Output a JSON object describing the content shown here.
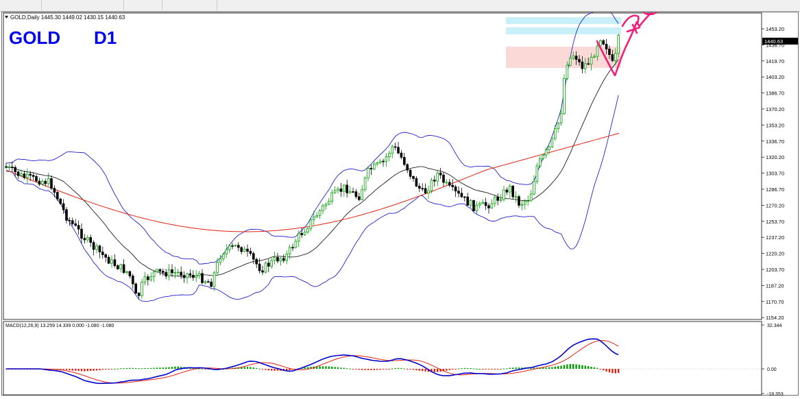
{
  "window": {
    "chart_title": "GOLD,Daily  1445.30 1449.02 1430.15 1440.63"
  },
  "overlay": {
    "symbol": "GOLD",
    "timeframe": "D1"
  },
  "price_axis": {
    "labels": [
      "1453.20",
      "1436.70",
      "1419.70",
      "1403.20",
      "1386.70",
      "1370.20",
      "1353.20",
      "1336.70",
      "1320.20",
      "1303.70",
      "1286.70",
      "1270.20",
      "1253.70",
      "1237.20",
      "1220.20",
      "1203.70",
      "1187.20",
      "1170.70",
      "1154.20"
    ],
    "current_price": "1440.63"
  },
  "macd": {
    "label": "MACD(12,26,9) 13.259 14.339 0.000 -1.080 -1.080",
    "axis_labels": [
      "32.344",
      "0.00",
      "-18.353"
    ]
  },
  "colors": {
    "bull_candle": "#00a000",
    "bear_candle": "#000000",
    "bollinger": "#1f1fd0",
    "ma_long": "#e02010",
    "ma_mid": "#000000",
    "macd_main": "#0000cc",
    "macd_signal": "#e02010",
    "hist_pos": "#00a000",
    "hist_neg": "#e02010",
    "zone_supply": "#c9f0f8",
    "zone_demand": "#fbd9d6",
    "annotation": "#f0207a"
  }
}
